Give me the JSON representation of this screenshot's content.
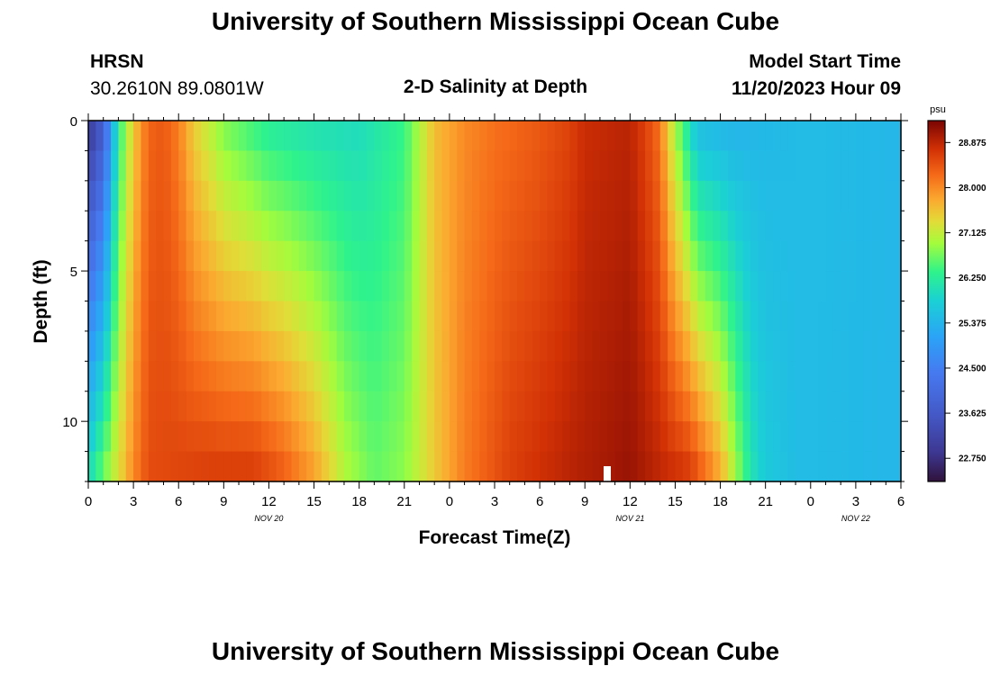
{
  "header": {
    "title": "University of Southern Mississippi Ocean Cube",
    "station": "HRSN",
    "coords": "30.2610N  89.0801W",
    "plot_title": "2-D Salinity at Depth",
    "model_label": "Model Start Time",
    "model_time": "11/20/2023 Hour 09"
  },
  "footer": {
    "title": "University of Southern Mississippi Ocean Cube"
  },
  "chart_data": {
    "type": "heatmap",
    "title": "2-D Salinity at Depth",
    "xlabel": "Forecast Time(Z)",
    "ylabel": "Depth (ft)",
    "x_hours_range": [
      0,
      54
    ],
    "x_tick_hours": [
      0,
      3,
      6,
      9,
      12,
      15,
      18,
      21,
      24,
      27,
      30,
      33,
      36,
      39,
      42,
      45,
      48,
      51,
      54
    ],
    "x_tick_labels": [
      "0",
      "3",
      "6",
      "9",
      "12",
      "15",
      "18",
      "21",
      "0",
      "3",
      "6",
      "9",
      "12",
      "15",
      "18",
      "21",
      "0",
      "3",
      "6"
    ],
    "date_labels": [
      {
        "hour": 12,
        "text": "NOV 20"
      },
      {
        "hour": 36,
        "text": "NOV 21"
      },
      {
        "hour": 51,
        "text": "NOV 22"
      }
    ],
    "ylim": [
      0,
      12
    ],
    "y_tick_values": [
      0,
      5,
      10
    ],
    "y_tick_labels": [
      "0",
      "5",
      "10"
    ],
    "depth_levels_ft": [
      0.5,
      1.5,
      2.5,
      3.5,
      4.5,
      5.5,
      6.5,
      7.5,
      8.5,
      9.5,
      10.5,
      11.5
    ],
    "time_step_hours": 0.5,
    "colorbar": {
      "unit": "psu",
      "min": 22.3,
      "max": 29.3,
      "ticks": [
        "28.875",
        "28.000",
        "27.125",
        "26.250",
        "25.375",
        "24.500",
        "23.625",
        "22.750"
      ]
    },
    "surface_profile": [
      [
        0,
        23.0
      ],
      [
        1,
        23.8
      ],
      [
        2,
        26.3
      ],
      [
        3,
        27.5
      ],
      [
        4,
        28.3
      ],
      [
        5,
        28.4
      ],
      [
        6,
        28.1
      ],
      [
        7,
        27.5
      ],
      [
        9,
        26.8
      ],
      [
        12,
        26.3
      ],
      [
        15,
        26.1
      ],
      [
        18,
        26.0
      ],
      [
        21,
        26.4
      ],
      [
        22,
        27.0
      ],
      [
        23,
        27.6
      ],
      [
        25,
        28.0
      ],
      [
        27,
        28.2
      ],
      [
        30,
        28.4
      ],
      [
        32,
        28.6
      ],
      [
        33,
        28.8
      ],
      [
        36,
        28.9
      ],
      [
        37,
        28.6
      ],
      [
        38,
        28.2
      ],
      [
        38.5,
        27.5
      ],
      [
        39.5,
        26.5
      ],
      [
        40.5,
        25.6
      ],
      [
        43,
        25.4
      ],
      [
        48,
        25.5
      ],
      [
        54,
        25.4
      ]
    ],
    "bottom_profile": [
      [
        0,
        25.9
      ],
      [
        1,
        26.6
      ],
      [
        2,
        27.3
      ],
      [
        3,
        28.0
      ],
      [
        4,
        28.5
      ],
      [
        8,
        28.6
      ],
      [
        11,
        28.6
      ],
      [
        13,
        28.3
      ],
      [
        15,
        27.8
      ],
      [
        17,
        27.0
      ],
      [
        19,
        26.6
      ],
      [
        21,
        26.8
      ],
      [
        23,
        27.5
      ],
      [
        25,
        28.1
      ],
      [
        28,
        28.6
      ],
      [
        32,
        28.9
      ],
      [
        36,
        29.1
      ],
      [
        40,
        28.6
      ],
      [
        42,
        27.7
      ],
      [
        43,
        26.9
      ],
      [
        44,
        26.1
      ],
      [
        45,
        25.7
      ],
      [
        47,
        25.5
      ],
      [
        54,
        25.4
      ]
    ]
  }
}
